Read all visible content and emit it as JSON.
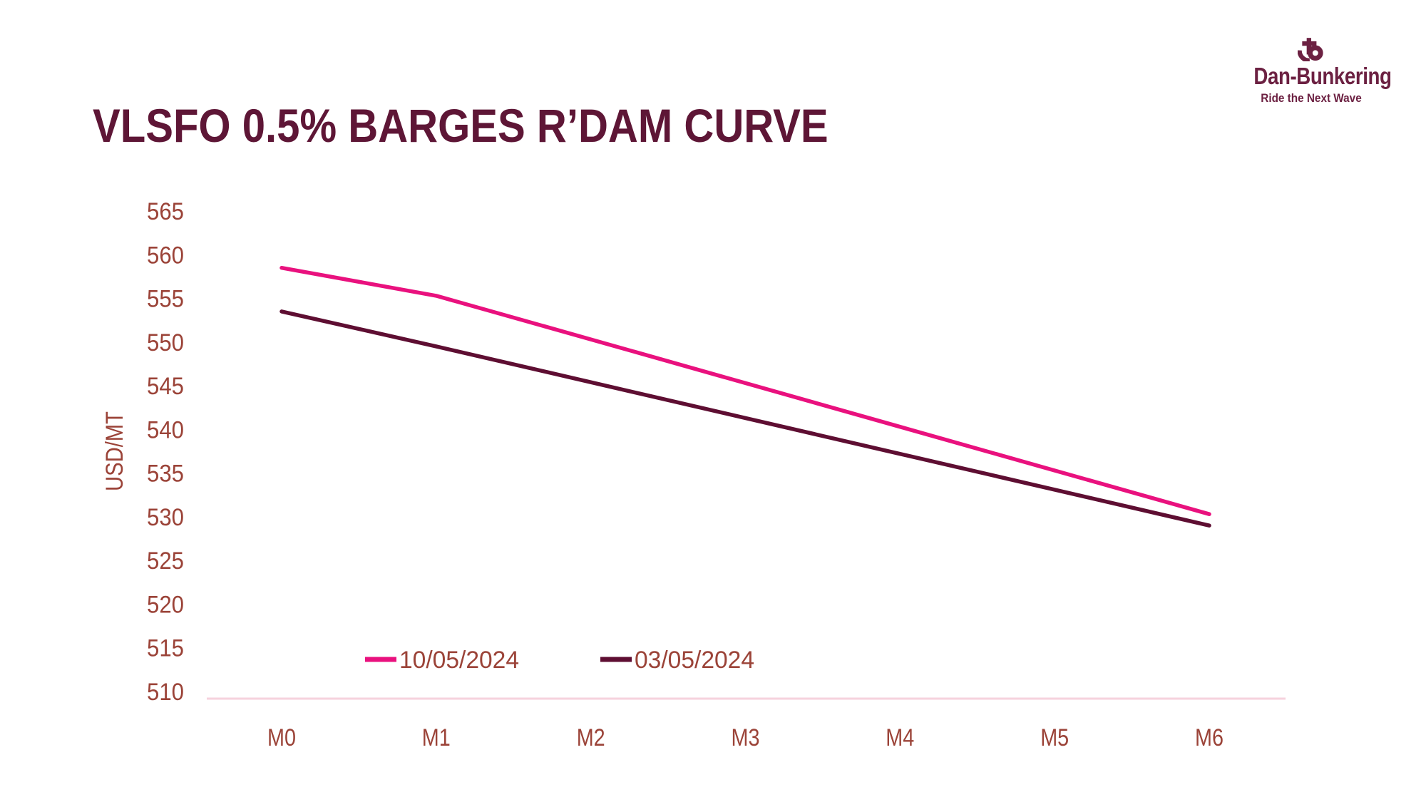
{
  "logo": {
    "name": "Dan-Bunkering",
    "tagline": "Ride the Next Wave",
    "icon": "anchor-icon"
  },
  "colors": {
    "background": "#ffffff",
    "title": "#5e1636",
    "logo": "#6c2142",
    "axis_text": "#9b4338",
    "axis_line": "#f6d2dd"
  },
  "chart_data": {
    "type": "line",
    "title": "VLSFO 0.5% BARGES R’DAM CURVE",
    "xlabel": "",
    "ylabel": "USD/MT",
    "categories": [
      "M0",
      "M1",
      "M2",
      "M3",
      "M4",
      "M5",
      "M6"
    ],
    "series": [
      {
        "name": "10/05/2024",
        "color": "#e9117e",
        "values": [
          558.5,
          555.3,
          550.3,
          545.3,
          540.3,
          535.3,
          530.3
        ]
      },
      {
        "name": "03/05/2024",
        "color": "#5e0e32",
        "values": [
          553.5,
          549.5,
          545.4,
          541.3,
          537.2,
          533.1,
          529.0
        ]
      }
    ],
    "ylim": [
      510,
      565
    ],
    "ytick_step": 5,
    "grid": false,
    "legend_position": "bottom-inside"
  }
}
